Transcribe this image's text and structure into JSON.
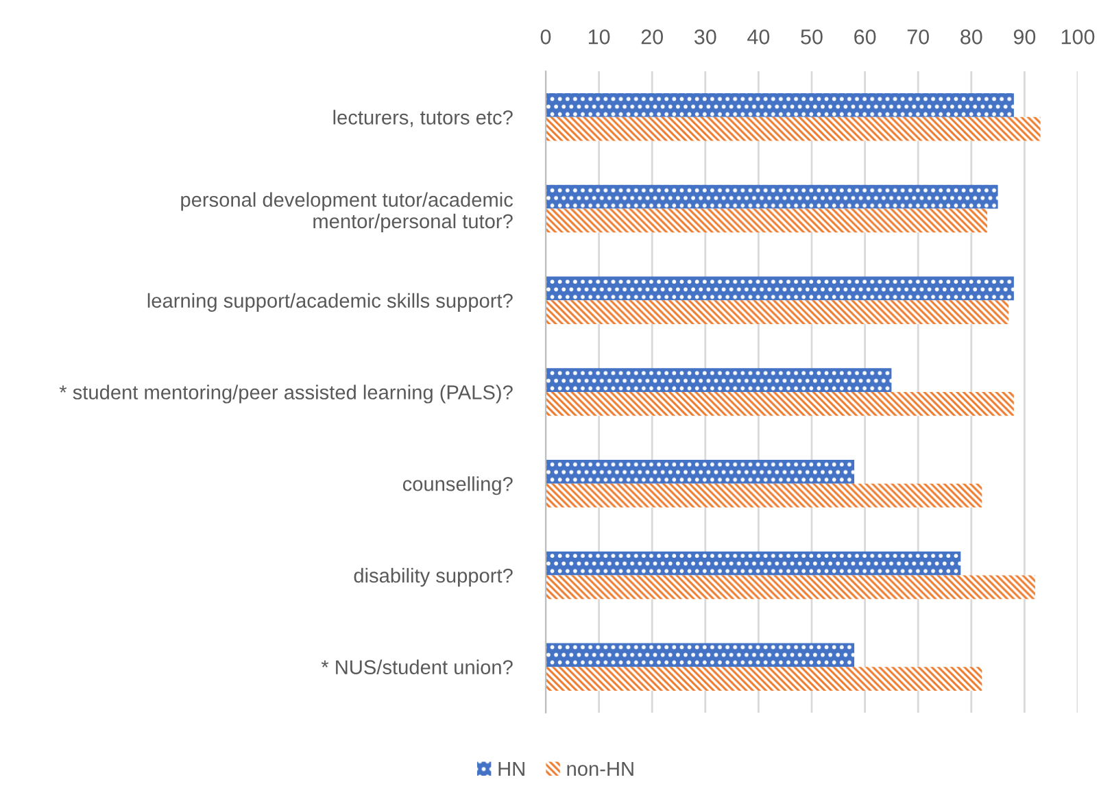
{
  "chart_data": {
    "type": "bar",
    "orientation": "horizontal",
    "categories": [
      "lecturers, tutors etc?",
      "personal development tutor/academic\nmentor/personal tutor?",
      "learning support/academic skills support?",
      "* student mentoring/peer assisted learning (PALS)?",
      "counselling?",
      "disability support?",
      "* NUS/student union?"
    ],
    "series": [
      {
        "name": "HN",
        "color": "#4472c4",
        "values": [
          88,
          85,
          88,
          65,
          58,
          78,
          58
        ]
      },
      {
        "name": "non-HN",
        "color": "#ed7d31",
        "values": [
          93,
          83,
          87,
          88,
          82,
          92,
          82
        ]
      }
    ],
    "xlim": [
      0,
      100
    ],
    "xticks": [
      0,
      10,
      20,
      30,
      40,
      50,
      60,
      70,
      80,
      90,
      100
    ],
    "grid": "x",
    "legend": "bottom"
  }
}
